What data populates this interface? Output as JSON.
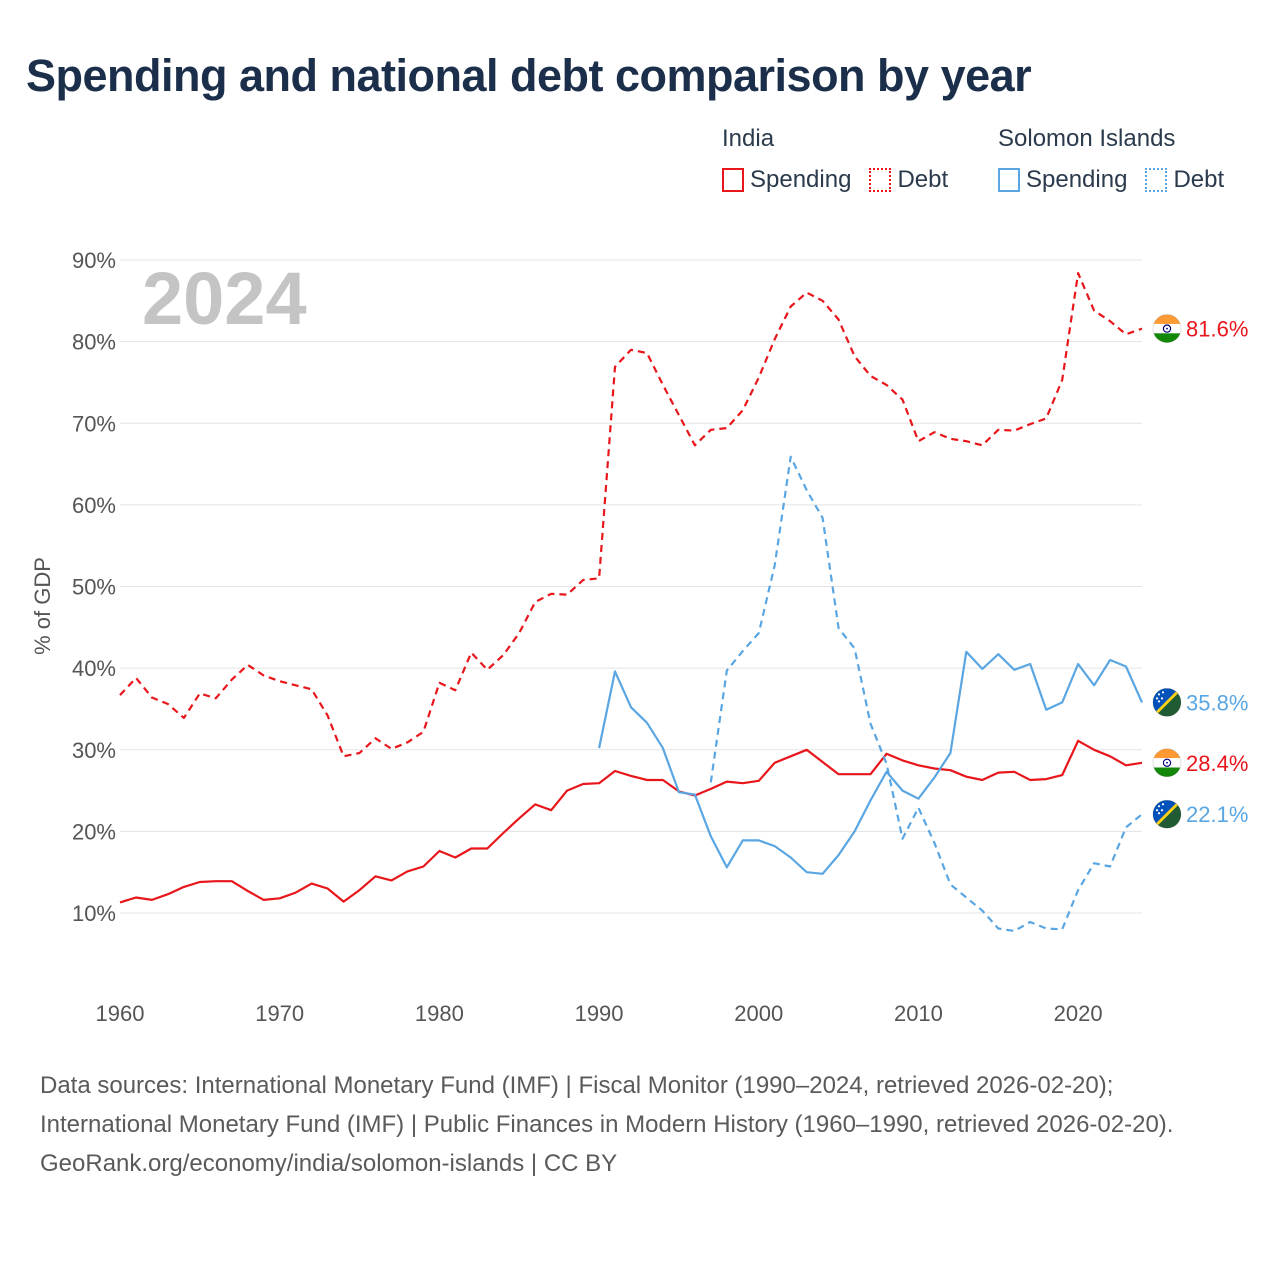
{
  "title": "Spending and national debt comparison by year",
  "legend": {
    "groups": [
      {
        "name": "India",
        "spending_label": "Spending",
        "debt_label": "Debt",
        "color": "#e8161b"
      },
      {
        "name": "Solomon Islands",
        "spending_label": "Spending",
        "debt_label": "Debt",
        "color": "#5aa6e2"
      }
    ]
  },
  "footer": {
    "sources": "Data sources: International Monetary Fund (IMF) | Fiscal Monitor (1990–2024, retrieved 2026-02-20); International Monetary Fund (IMF) | Public Finances in Modern History (1960–1990, retrieved 2026-02-20).",
    "credit": "GeoRank.org/economy/india/solomon-islands | CC BY"
  },
  "chart_data": {
    "type": "line",
    "year_label": "2024",
    "ylabel": "% of GDP",
    "xlim": [
      1960,
      2024
    ],
    "ylim": [
      10,
      90
    ],
    "x_ticks": [
      1960,
      1970,
      1980,
      1990,
      2000,
      2010,
      2020
    ],
    "y_ticks": [
      10,
      20,
      30,
      40,
      50,
      60,
      70,
      80,
      90
    ],
    "grid": true,
    "series": [
      {
        "name": "India Debt",
        "country": "India",
        "metric": "Debt",
        "style": "dashed",
        "color": "#e8161b",
        "end_label": "81.6%",
        "end_value": 81.6,
        "flag": "india-flag",
        "points": [
          [
            1960,
            36.7
          ],
          [
            1961,
            38.8
          ],
          [
            1962,
            36.4
          ],
          [
            1963,
            35.6
          ],
          [
            1964,
            33.9
          ],
          [
            1965,
            36.9
          ],
          [
            1966,
            36.3
          ],
          [
            1967,
            38.6
          ],
          [
            1968,
            40.4
          ],
          [
            1969,
            39.1
          ],
          [
            1970,
            38.4
          ],
          [
            1971,
            37.9
          ],
          [
            1972,
            37.4
          ],
          [
            1973,
            34.2
          ],
          [
            1974,
            29.2
          ],
          [
            1975,
            29.6
          ],
          [
            1976,
            31.4
          ],
          [
            1977,
            30.1
          ],
          [
            1978,
            30.9
          ],
          [
            1979,
            32.2
          ],
          [
            1980,
            38.2
          ],
          [
            1981,
            37.3
          ],
          [
            1982,
            41.9
          ],
          [
            1983,
            39.8
          ],
          [
            1984,
            41.6
          ],
          [
            1985,
            44.3
          ],
          [
            1986,
            48.1
          ],
          [
            1987,
            49.1
          ],
          [
            1988,
            49.0
          ],
          [
            1989,
            50.8
          ],
          [
            1990,
            51.0
          ],
          [
            1991,
            76.9
          ],
          [
            1992,
            79.0
          ],
          [
            1993,
            78.6
          ],
          [
            1994,
            74.7
          ],
          [
            1995,
            71.0
          ],
          [
            1996,
            67.3
          ],
          [
            1997,
            69.2
          ],
          [
            1998,
            69.4
          ],
          [
            1999,
            71.6
          ],
          [
            2000,
            75.6
          ],
          [
            2001,
            80.3
          ],
          [
            2002,
            84.3
          ],
          [
            2003,
            86.0
          ],
          [
            2004,
            85.0
          ],
          [
            2005,
            82.7
          ],
          [
            2006,
            78.2
          ],
          [
            2007,
            75.8
          ],
          [
            2008,
            74.7
          ],
          [
            2009,
            72.9
          ],
          [
            2010,
            67.8
          ],
          [
            2011,
            68.9
          ],
          [
            2012,
            68.1
          ],
          [
            2013,
            67.8
          ],
          [
            2014,
            67.3
          ],
          [
            2015,
            69.2
          ],
          [
            2016,
            69.1
          ],
          [
            2017,
            69.9
          ],
          [
            2018,
            70.6
          ],
          [
            2019,
            75.3
          ],
          [
            2020,
            88.4
          ],
          [
            2021,
            83.8
          ],
          [
            2022,
            82.5
          ],
          [
            2023,
            80.9
          ],
          [
            2024,
            81.6
          ]
        ]
      },
      {
        "name": "India Spending",
        "country": "India",
        "metric": "Spending",
        "style": "solid",
        "color": "#e8161b",
        "end_label": "28.4%",
        "end_value": 28.4,
        "flag": "india-flag",
        "points": [
          [
            1960,
            11.3
          ],
          [
            1961,
            11.9
          ],
          [
            1962,
            11.6
          ],
          [
            1963,
            12.3
          ],
          [
            1964,
            13.2
          ],
          [
            1965,
            13.8
          ],
          [
            1966,
            13.9
          ],
          [
            1967,
            13.9
          ],
          [
            1968,
            12.7
          ],
          [
            1969,
            11.6
          ],
          [
            1970,
            11.8
          ],
          [
            1971,
            12.5
          ],
          [
            1972,
            13.6
          ],
          [
            1973,
            13.0
          ],
          [
            1974,
            11.4
          ],
          [
            1975,
            12.8
          ],
          [
            1976,
            14.5
          ],
          [
            1977,
            14.0
          ],
          [
            1978,
            15.1
          ],
          [
            1979,
            15.7
          ],
          [
            1980,
            17.6
          ],
          [
            1981,
            16.8
          ],
          [
            1982,
            17.9
          ],
          [
            1983,
            17.9
          ],
          [
            1984,
            19.8
          ],
          [
            1985,
            21.6
          ],
          [
            1986,
            23.3
          ],
          [
            1987,
            22.6
          ],
          [
            1988,
            25.0
          ],
          [
            1989,
            25.8
          ],
          [
            1990,
            25.9
          ],
          [
            1991,
            27.4
          ],
          [
            1992,
            26.8
          ],
          [
            1993,
            26.3
          ],
          [
            1994,
            26.3
          ],
          [
            1995,
            24.9
          ],
          [
            1996,
            24.4
          ],
          [
            1997,
            25.2
          ],
          [
            1998,
            26.1
          ],
          [
            1999,
            25.9
          ],
          [
            2000,
            26.2
          ],
          [
            2001,
            28.4
          ],
          [
            2002,
            29.2
          ],
          [
            2003,
            30.0
          ],
          [
            2004,
            28.5
          ],
          [
            2005,
            27.0
          ],
          [
            2006,
            27.0
          ],
          [
            2007,
            27.0
          ],
          [
            2008,
            29.5
          ],
          [
            2009,
            28.7
          ],
          [
            2010,
            28.1
          ],
          [
            2011,
            27.7
          ],
          [
            2012,
            27.5
          ],
          [
            2013,
            26.7
          ],
          [
            2014,
            26.3
          ],
          [
            2015,
            27.2
          ],
          [
            2016,
            27.3
          ],
          [
            2017,
            26.3
          ],
          [
            2018,
            26.4
          ],
          [
            2019,
            26.9
          ],
          [
            2020,
            31.1
          ],
          [
            2021,
            30.0
          ],
          [
            2022,
            29.2
          ],
          [
            2023,
            28.1
          ],
          [
            2024,
            28.4
          ]
        ]
      },
      {
        "name": "Solomon Islands Debt",
        "country": "Solomon Islands",
        "metric": "Debt",
        "style": "dashed",
        "color": "#5aa6e2",
        "end_label": "22.1%",
        "end_value": 22.1,
        "flag": "solomon-islands-flag",
        "points": [
          [
            1997,
            26.0
          ],
          [
            1998,
            39.7
          ],
          [
            1999,
            42.1
          ],
          [
            2000,
            44.3
          ],
          [
            2001,
            52.6
          ],
          [
            2002,
            65.9
          ],
          [
            2003,
            61.8
          ],
          [
            2004,
            58.4
          ],
          [
            2005,
            44.9
          ],
          [
            2006,
            42.4
          ],
          [
            2007,
            33.2
          ],
          [
            2008,
            28.3
          ],
          [
            2009,
            19.1
          ],
          [
            2010,
            22.9
          ],
          [
            2011,
            18.6
          ],
          [
            2012,
            13.5
          ],
          [
            2013,
            11.9
          ],
          [
            2014,
            10.3
          ],
          [
            2015,
            8.1
          ],
          [
            2016,
            7.8
          ],
          [
            2017,
            8.9
          ],
          [
            2018,
            8.1
          ],
          [
            2019,
            8.0
          ],
          [
            2020,
            12.8
          ],
          [
            2021,
            16.1
          ],
          [
            2022,
            15.7
          ],
          [
            2023,
            20.5
          ],
          [
            2024,
            22.1
          ]
        ]
      },
      {
        "name": "Solomon Islands Spending",
        "country": "Solomon Islands",
        "metric": "Spending",
        "style": "solid",
        "color": "#5aa6e2",
        "end_label": "35.8%",
        "end_value": 35.8,
        "flag": "solomon-islands-flag",
        "points": [
          [
            1990,
            30.2
          ],
          [
            1991,
            39.6
          ],
          [
            1992,
            35.2
          ],
          [
            1993,
            33.3
          ],
          [
            1994,
            30.2
          ],
          [
            1995,
            24.8
          ],
          [
            1996,
            24.5
          ],
          [
            1997,
            19.4
          ],
          [
            1998,
            15.6
          ],
          [
            1999,
            18.9
          ],
          [
            2000,
            18.9
          ],
          [
            2001,
            18.2
          ],
          [
            2002,
            16.8
          ],
          [
            2003,
            15.0
          ],
          [
            2004,
            14.8
          ],
          [
            2005,
            17.1
          ],
          [
            2006,
            20.0
          ],
          [
            2007,
            23.8
          ],
          [
            2008,
            27.3
          ],
          [
            2009,
            25.0
          ],
          [
            2010,
            24.0
          ],
          [
            2011,
            26.6
          ],
          [
            2012,
            29.6
          ],
          [
            2013,
            42.0
          ],
          [
            2014,
            39.9
          ],
          [
            2015,
            41.7
          ],
          [
            2016,
            39.8
          ],
          [
            2017,
            40.5
          ],
          [
            2018,
            34.9
          ],
          [
            2019,
            35.8
          ],
          [
            2020,
            40.5
          ],
          [
            2021,
            37.9
          ],
          [
            2022,
            41.0
          ],
          [
            2023,
            40.2
          ],
          [
            2024,
            35.8
          ]
        ]
      }
    ]
  }
}
